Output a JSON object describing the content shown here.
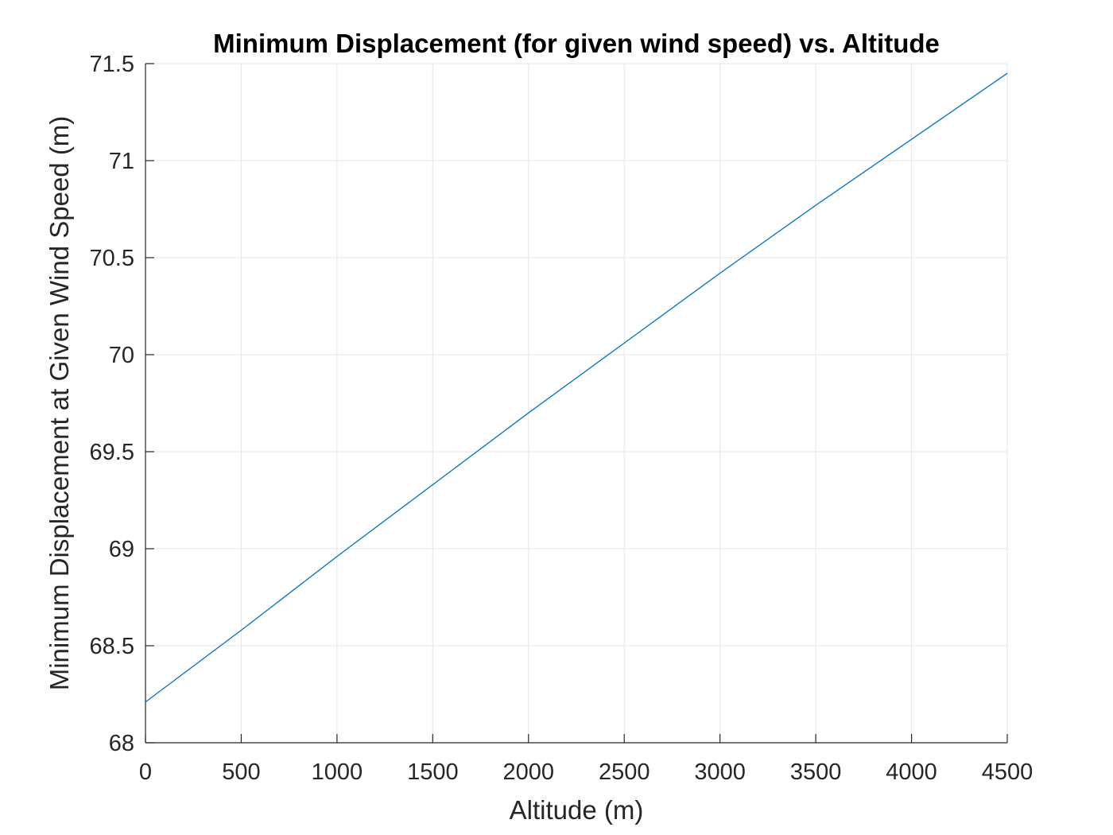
{
  "chart_data": {
    "type": "line",
    "title": "Minimum Displacement (for given wind speed) vs. Altitude",
    "xlabel": "Altitude (m)",
    "ylabel": "Minimum Displacement at Given Wind Speed (m)",
    "xlim": [
      0,
      4500
    ],
    "ylim": [
      68,
      71.5
    ],
    "xticks": [
      0,
      500,
      1000,
      1500,
      2000,
      2500,
      3000,
      3500,
      4000,
      4500
    ],
    "xtick_labels": [
      "0",
      "500",
      "1000",
      "1500",
      "2000",
      "2500",
      "3000",
      "3500",
      "4000",
      "4500"
    ],
    "yticks": [
      68,
      68.5,
      69,
      69.5,
      70,
      70.5,
      71,
      71.5
    ],
    "ytick_labels": [
      "68",
      "68.5",
      "69",
      "69.5",
      "70",
      "70.5",
      "71",
      "71.5"
    ],
    "grid": true,
    "series": [
      {
        "name": "Minimum Displacement",
        "color": "#0072BD",
        "x": [
          0,
          500,
          1000,
          1500,
          2000,
          2500,
          3000,
          3500,
          4000,
          4500
        ],
        "y": [
          68.21,
          68.58,
          68.96,
          69.33,
          69.7,
          70.06,
          70.42,
          70.77,
          71.11,
          71.45
        ]
      }
    ]
  }
}
